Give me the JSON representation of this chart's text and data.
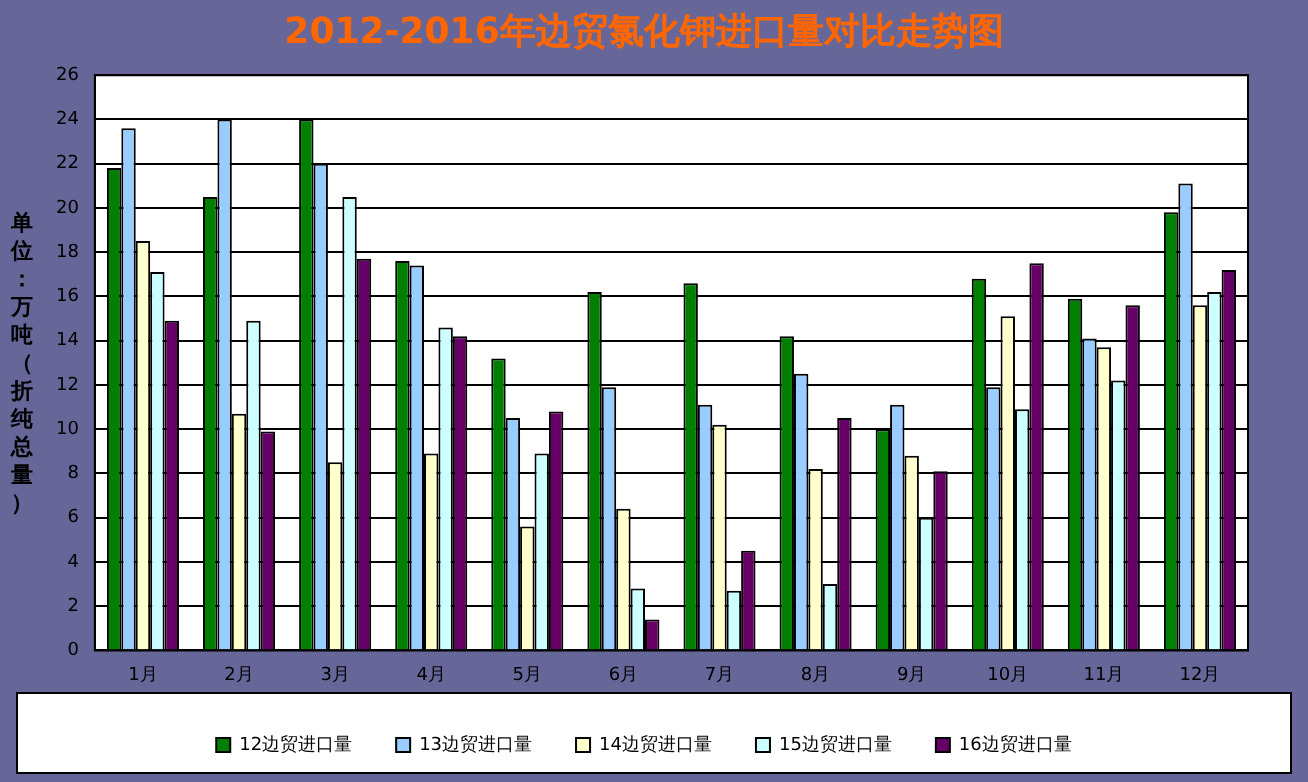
{
  "chart_data": {
    "type": "bar",
    "title": "2012-2016年边贸氯化钾进口量对比走势图",
    "ylabel": "单位：万吨（折纯总量）",
    "categories": [
      "1月",
      "2月",
      "3月",
      "4月",
      "5月",
      "6月",
      "7月",
      "8月",
      "9月",
      "10月",
      "11月",
      "12月"
    ],
    "series": [
      {
        "name": "12边贸进口量",
        "color": "#008000",
        "values": [
          21.8,
          20.5,
          24.0,
          17.6,
          13.2,
          16.2,
          16.6,
          14.2,
          10.0,
          16.8,
          15.9,
          19.8
        ]
      },
      {
        "name": "13边贸进口量",
        "color": "#99ccff",
        "values": [
          23.6,
          24.0,
          22.0,
          17.4,
          10.5,
          11.9,
          11.1,
          12.5,
          11.1,
          11.9,
          14.1,
          21.1
        ]
      },
      {
        "name": "14边贸进口量",
        "color": "#ffffcc",
        "values": [
          18.5,
          10.7,
          8.5,
          8.9,
          5.6,
          6.4,
          10.2,
          8.2,
          8.8,
          15.1,
          13.7,
          15.6
        ]
      },
      {
        "name": "15边贸进口量",
        "color": "#ccffff",
        "values": [
          17.1,
          14.9,
          20.5,
          14.6,
          8.9,
          2.8,
          2.7,
          3.0,
          6.0,
          10.9,
          12.2,
          16.2
        ]
      },
      {
        "name": "16边贸进口量",
        "color": "#660066",
        "values": [
          14.9,
          9.9,
          17.7,
          14.2,
          10.8,
          1.4,
          4.5,
          10.5,
          8.1,
          17.5,
          15.6,
          17.2
        ]
      }
    ],
    "ylim": [
      0,
      26
    ],
    "yticks": [
      0,
      2,
      4,
      6,
      8,
      10,
      12,
      14,
      16,
      18,
      20,
      22,
      24,
      26
    ],
    "grid": "y",
    "legend": "bottom"
  }
}
